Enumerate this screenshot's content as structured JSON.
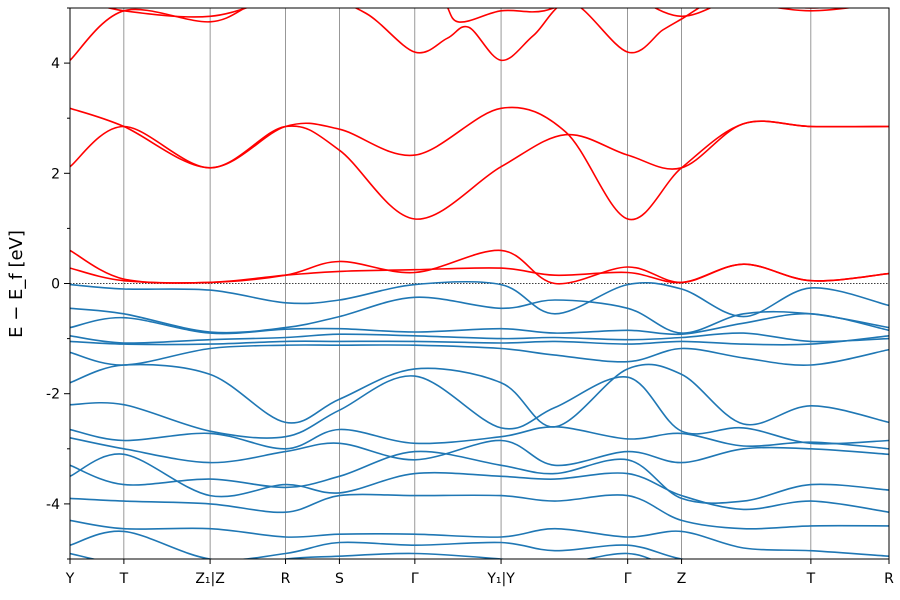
{
  "chart_data": {
    "type": "line",
    "ylabel": "E − E_f [eV]",
    "ylim": [
      -5,
      5
    ],
    "y_ticks": [
      {
        "value": 4,
        "label": "4"
      },
      {
        "value": 2,
        "label": "2"
      },
      {
        "value": 0,
        "label": "0"
      },
      {
        "value": -2,
        "label": "-2"
      },
      {
        "value": -4,
        "label": "-4"
      }
    ],
    "y_minor_ticks": [
      5,
      3,
      1,
      -1,
      -3,
      -5
    ],
    "x_range": [
      0,
      15.2
    ],
    "k_points": [
      {
        "x": 0.0,
        "label": "Y"
      },
      {
        "x": 1.0,
        "label": "T"
      },
      {
        "x": 2.6,
        "label": "Z₁|Z"
      },
      {
        "x": 4.0,
        "label": "R"
      },
      {
        "x": 5.0,
        "label": "S"
      },
      {
        "x": 6.4,
        "label": "Γ"
      },
      {
        "x": 8.0,
        "label": "Y₁|Y"
      },
      {
        "x": 10.35,
        "label": "Γ"
      },
      {
        "x": 11.35,
        "label": "Z"
      },
      {
        "x": 13.75,
        "label": "T"
      },
      {
        "x": 15.2,
        "label": "R"
      }
    ],
    "fermi_level": 0,
    "series": [
      {
        "band": "conduction",
        "color": "#ff0000",
        "x": [
          0,
          1,
          2.6,
          4,
          5,
          6.4,
          8,
          9,
          10.35,
          11.35,
          12.5,
          13.75,
          15.2
        ],
        "y": [
          0.6,
          0.08,
          0.02,
          0.15,
          0.4,
          0.2,
          0.6,
          0.0,
          0.3,
          0.02,
          0.35,
          0.05,
          0.18
        ]
      },
      {
        "band": "conduction",
        "color": "#ff0000",
        "x": [
          0,
          1,
          2.6,
          4,
          5,
          6.4,
          8,
          9,
          10.35,
          11.35,
          12.5,
          13.75,
          15.2
        ],
        "y": [
          0.28,
          0.05,
          0.02,
          0.15,
          0.22,
          0.25,
          0.28,
          0.15,
          0.2,
          0.02,
          0.35,
          0.05,
          0.18
        ]
      },
      {
        "band": "conduction",
        "color": "#ff0000",
        "x": [
          0,
          1,
          2.6,
          4,
          5,
          6.4,
          8,
          9.2,
          10.35,
          11.35,
          12.5,
          13.75,
          15.2
        ],
        "y": [
          2.12,
          2.85,
          2.1,
          2.85,
          2.8,
          2.33,
          3.18,
          2.75,
          1.17,
          2.1,
          2.9,
          2.85,
          2.85
        ]
      },
      {
        "band": "conduction",
        "color": "#ff0000",
        "x": [
          0,
          1,
          2.6,
          4,
          5,
          6.4,
          8,
          9.2,
          10.35,
          11.35,
          12.5,
          13.75,
          15.2
        ],
        "y": [
          3.18,
          2.85,
          2.1,
          2.85,
          2.42,
          1.17,
          2.12,
          2.7,
          2.33,
          2.1,
          2.9,
          2.85,
          2.85
        ]
      },
      {
        "band": "conduction",
        "color": "#ff0000",
        "x": [
          0,
          1,
          2.6,
          3.5,
          4.6,
          5.5,
          6.4,
          7.0,
          7.4,
          8.0,
          8.6,
          9.3,
          10.35,
          11.0,
          11.35,
          11.9,
          12.5,
          13.75,
          15.2
        ],
        "y": [
          4.05,
          4.95,
          4.75,
          5.1,
          5.2,
          4.9,
          4.2,
          4.45,
          4.65,
          4.05,
          4.5,
          5.1,
          4.2,
          4.6,
          4.8,
          5.1,
          5.1,
          4.95,
          5.1
        ]
      },
      {
        "band": "conduction",
        "color": "#ff0000",
        "x": [
          0,
          1,
          2.6,
          4.0,
          5.5,
          6.8,
          7.2,
          8.0,
          8.8,
          9.8,
          10.35,
          11.35,
          12.5,
          13.75,
          15.2
        ],
        "y": [
          5.2,
          4.95,
          4.85,
          5.2,
          5.3,
          5.2,
          4.75,
          4.95,
          4.95,
          5.3,
          5.25,
          4.85,
          5.2,
          5.0,
          5.2
        ]
      },
      {
        "band": "valence",
        "color": "#1f77b4",
        "x": [
          0,
          1,
          2.6,
          4,
          5,
          6.4,
          8,
          9,
          10.35,
          11.35,
          12.5,
          13.75,
          15.2
        ],
        "y": [
          -0.02,
          -0.1,
          -0.12,
          -0.35,
          -0.3,
          -0.02,
          -0.02,
          -0.55,
          -0.02,
          -0.1,
          -0.6,
          -0.08,
          -0.4
        ]
      },
      {
        "band": "valence",
        "color": "#1f77b4",
        "x": [
          0,
          1,
          2.6,
          4,
          5,
          6.4,
          8,
          9,
          10.35,
          11.35,
          12.5,
          13.75,
          15.2
        ],
        "y": [
          -0.45,
          -0.55,
          -0.88,
          -0.8,
          -0.6,
          -0.25,
          -0.45,
          -0.3,
          -0.45,
          -0.9,
          -0.55,
          -0.55,
          -0.8
        ]
      },
      {
        "band": "valence",
        "color": "#1f77b4",
        "x": [
          0,
          1,
          2.6,
          4,
          5,
          6.4,
          8,
          9,
          10.35,
          11.35,
          12.5,
          13.75,
          15.2
        ],
        "y": [
          -0.8,
          -0.62,
          -0.9,
          -0.83,
          -0.82,
          -0.88,
          -0.82,
          -0.9,
          -0.85,
          -0.92,
          -0.72,
          -0.55,
          -0.85
        ]
      },
      {
        "band": "valence",
        "color": "#1f77b4",
        "x": [
          0,
          1,
          2.6,
          4,
          5,
          6.4,
          8,
          9,
          10.35,
          11.35,
          12.5,
          13.75,
          15.2
        ],
        "y": [
          -0.95,
          -1.08,
          -1.02,
          -0.98,
          -0.92,
          -0.95,
          -1.0,
          -0.98,
          -1.02,
          -0.98,
          -0.9,
          -1.05,
          -1.0
        ]
      },
      {
        "band": "valence",
        "color": "#1f77b4",
        "x": [
          0,
          1,
          2.6,
          4,
          5,
          6.4,
          8,
          9,
          10.35,
          11.35,
          12.5,
          13.75,
          15.2
        ],
        "y": [
          -1.05,
          -1.1,
          -1.1,
          -1.05,
          -1.05,
          -1.05,
          -1.08,
          -1.05,
          -1.1,
          -1.05,
          -1.1,
          -1.1,
          -0.95
        ]
      },
      {
        "band": "valence",
        "color": "#1f77b4",
        "x": [
          0,
          1,
          2.6,
          4,
          5,
          6.4,
          8,
          9,
          10.35,
          11.35,
          12.5,
          13.75,
          15.2
        ],
        "y": [
          -1.25,
          -1.48,
          -1.18,
          -1.12,
          -1.12,
          -1.12,
          -1.18,
          -1.3,
          -1.42,
          -1.18,
          -1.35,
          -1.48,
          -1.2
        ]
      },
      {
        "band": "valence",
        "color": "#1f77b4",
        "x": [
          0,
          1,
          2.6,
          4,
          5,
          6.4,
          8,
          9,
          10.35,
          11.35,
          12.5,
          13.75,
          15.2
        ],
        "y": [
          -1.8,
          -1.48,
          -1.65,
          -2.52,
          -2.1,
          -1.55,
          -1.8,
          -2.6,
          -1.55,
          -1.65,
          -2.55,
          -2.22,
          -2.52
        ]
      },
      {
        "band": "valence",
        "color": "#1f77b4",
        "x": [
          0,
          1,
          2.6,
          4,
          5,
          6.4,
          8,
          9,
          10.35,
          11.35,
          12.5,
          13.75,
          15.2
        ],
        "y": [
          -2.2,
          -2.2,
          -2.68,
          -2.78,
          -2.3,
          -1.68,
          -2.62,
          -2.25,
          -1.7,
          -2.68,
          -2.62,
          -2.9,
          -2.85
        ]
      },
      {
        "band": "valence",
        "color": "#1f77b4",
        "x": [
          0,
          1,
          2.6,
          4,
          5,
          6.4,
          8,
          9,
          10.35,
          11.35,
          12.5,
          13.75,
          15.2
        ],
        "y": [
          -2.65,
          -2.85,
          -2.72,
          -3.0,
          -2.65,
          -2.9,
          -2.78,
          -2.6,
          -2.82,
          -2.72,
          -2.95,
          -2.88,
          -3.0
        ]
      },
      {
        "band": "valence",
        "color": "#1f77b4",
        "x": [
          0,
          1,
          2.6,
          4,
          5,
          6.4,
          8,
          9,
          10.35,
          11.35,
          12.5,
          13.75,
          15.2
        ],
        "y": [
          -2.8,
          -3.0,
          -3.25,
          -3.05,
          -2.9,
          -3.2,
          -2.85,
          -3.3,
          -3.05,
          -3.25,
          -3.0,
          -3.0,
          -3.1
        ]
      },
      {
        "band": "valence",
        "color": "#1f77b4",
        "x": [
          0,
          1,
          2.6,
          4,
          5,
          6.4,
          8,
          9,
          10.35,
          11.35,
          12.5,
          13.75,
          15.2
        ],
        "y": [
          -3.3,
          -3.65,
          -3.55,
          -3.7,
          -3.5,
          -3.05,
          -3.3,
          -3.45,
          -3.2,
          -3.9,
          -3.95,
          -3.65,
          -3.75
        ]
      },
      {
        "band": "valence",
        "color": "#1f77b4",
        "x": [
          0,
          1,
          2.6,
          4,
          5,
          6.4,
          8,
          9,
          10.35,
          11.35,
          12.5,
          13.75,
          15.2
        ],
        "y": [
          -3.5,
          -3.1,
          -3.85,
          -3.65,
          -3.8,
          -3.45,
          -3.5,
          -3.55,
          -3.45,
          -3.85,
          -4.1,
          -3.95,
          -4.15
        ]
      },
      {
        "band": "valence",
        "color": "#1f77b4",
        "x": [
          0,
          1,
          2.6,
          4,
          5,
          6.4,
          8,
          9,
          10.35,
          11.35,
          12.5,
          13.75,
          15.2
        ],
        "y": [
          -3.9,
          -3.95,
          -4.0,
          -4.15,
          -3.85,
          -3.85,
          -3.85,
          -3.95,
          -3.85,
          -4.3,
          -4.45,
          -4.4,
          -4.4
        ]
      },
      {
        "band": "valence",
        "color": "#1f77b4",
        "x": [
          0,
          1,
          2.6,
          4,
          5,
          6.4,
          8,
          9,
          10.35,
          11.35,
          12.5,
          13.75,
          15.2
        ],
        "y": [
          -4.3,
          -4.45,
          -4.45,
          -4.6,
          -4.55,
          -4.55,
          -4.6,
          -4.45,
          -4.6,
          -4.5,
          -4.8,
          -4.85,
          -4.95
        ]
      },
      {
        "band": "valence",
        "color": "#1f77b4",
        "x": [
          0,
          1,
          2.6,
          4,
          5,
          6.4,
          8,
          9,
          10.35,
          11.35,
          12.5,
          13.75,
          15.2
        ],
        "y": [
          -4.75,
          -4.5,
          -5.0,
          -4.9,
          -4.7,
          -4.75,
          -4.7,
          -4.85,
          -4.75,
          -5.0,
          -5.1,
          -5.1,
          -5.1
        ]
      },
      {
        "band": "valence",
        "color": "#1f77b4",
        "x": [
          0,
          1,
          2.6,
          4,
          5,
          6.4,
          8,
          9,
          10.35,
          11.35,
          12.5,
          13.75,
          15.2
        ],
        "y": [
          -4.9,
          -5.1,
          -5.2,
          -5.0,
          -4.95,
          -4.9,
          -5.0,
          -5.1,
          -4.9,
          -5.2,
          -5.2,
          -5.2,
          -5.2
        ]
      }
    ]
  }
}
